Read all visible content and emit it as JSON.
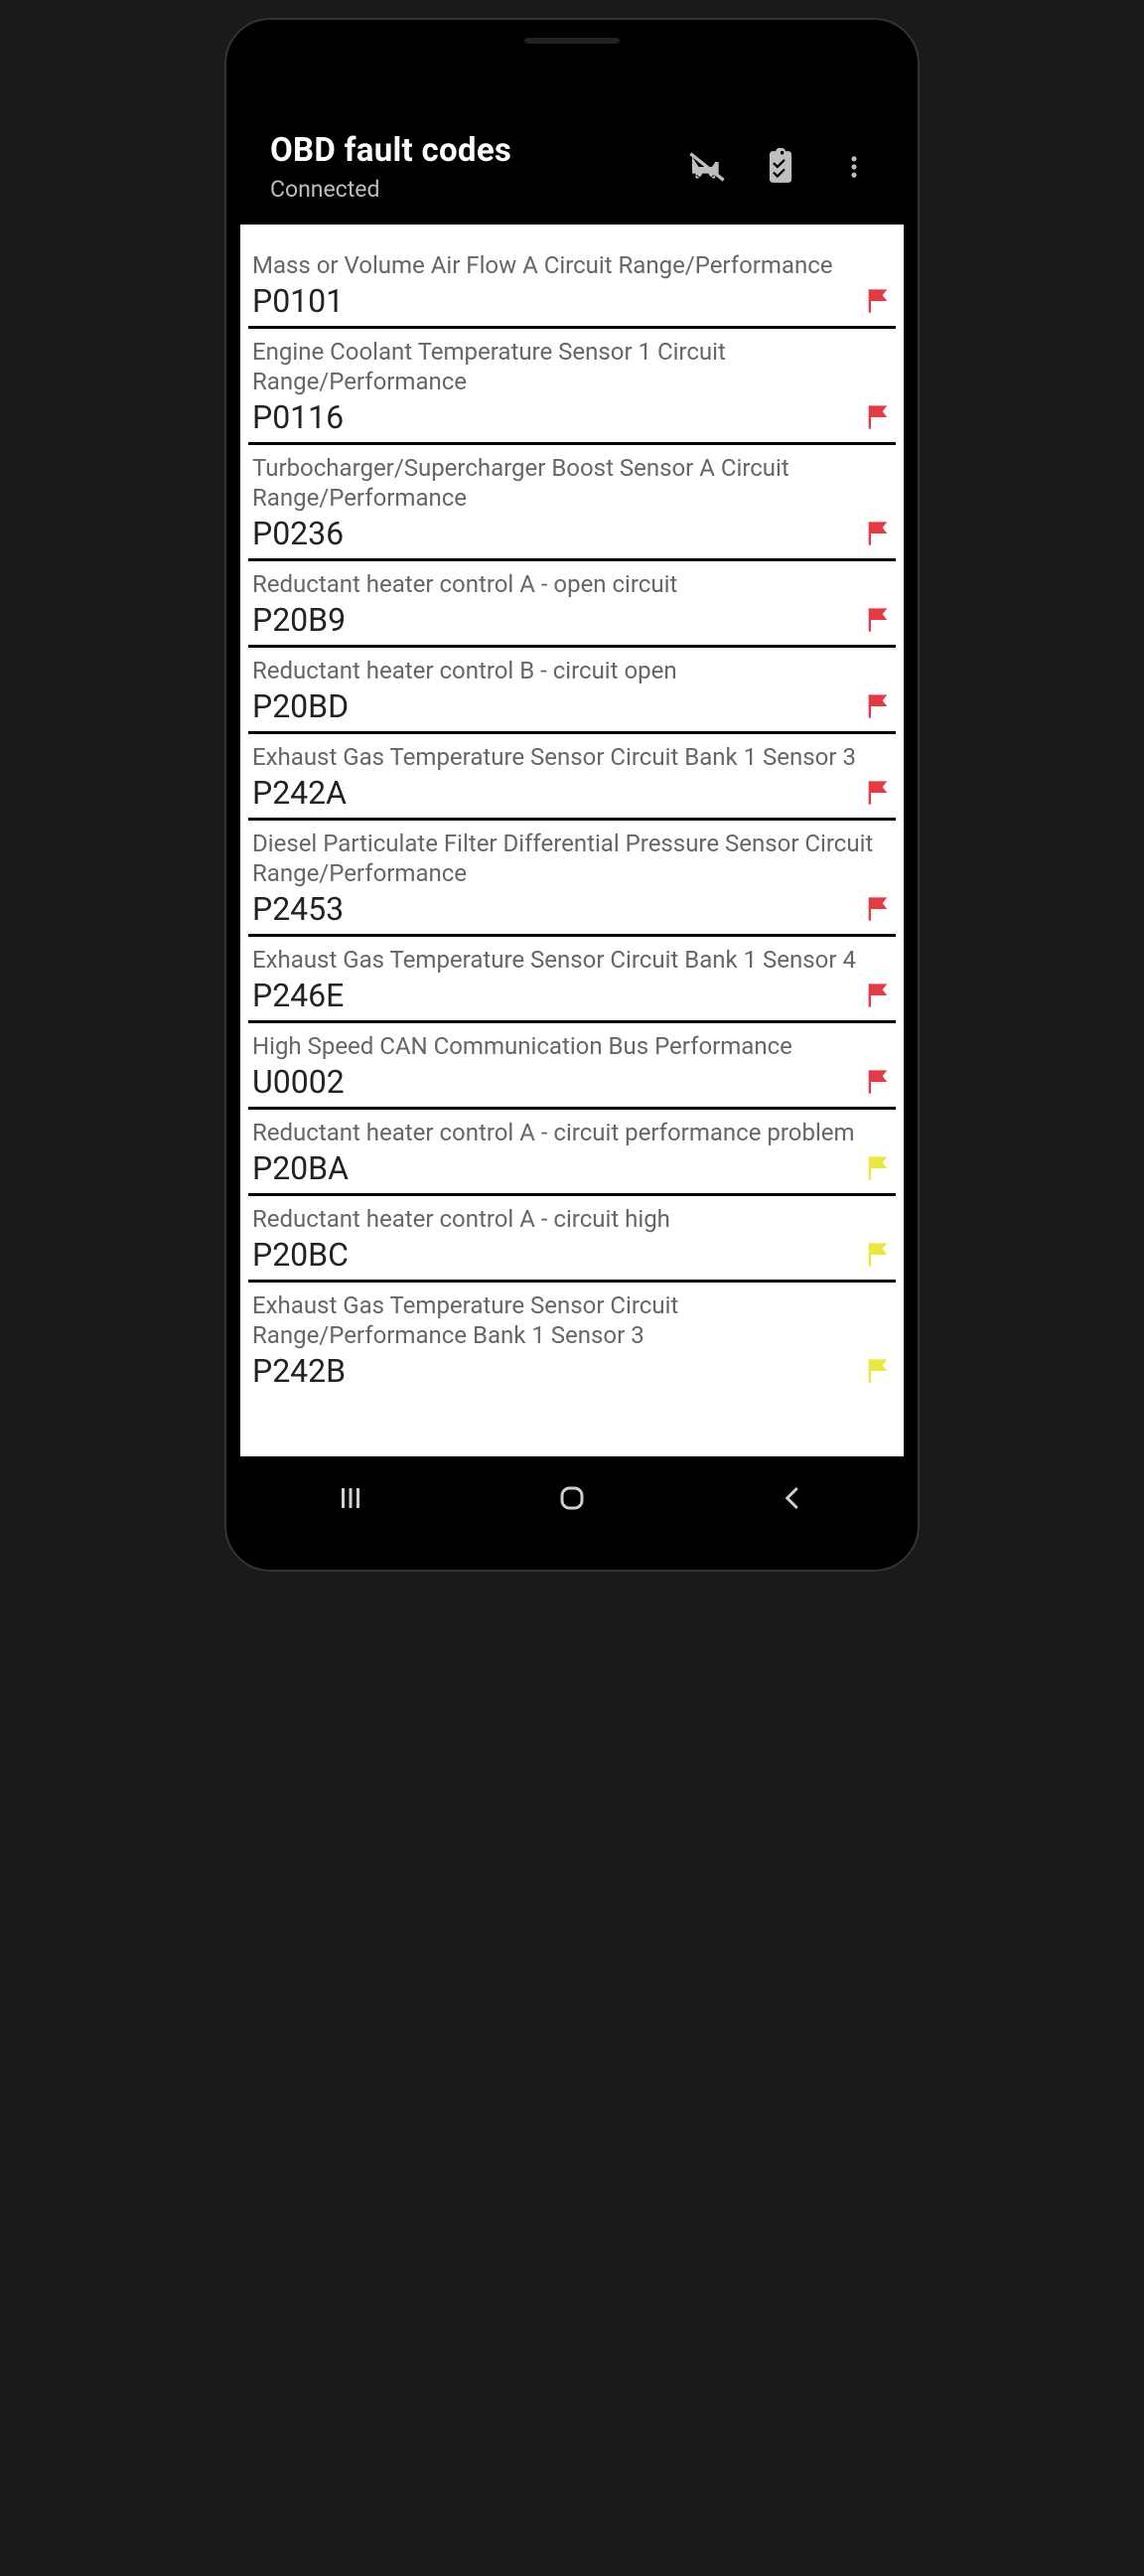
{
  "header": {
    "title": "OBD fault codes",
    "subtitle": "Connected"
  },
  "colors": {
    "flag_red": "#e53946",
    "flag_yellow": "#e8e83e",
    "header_bg": "#000000",
    "content_bg": "#ffffff",
    "desc_text": "#666666",
    "code_text": "#222222",
    "icon_gray": "#bfbfbf",
    "divider": "#000000"
  },
  "faults": [
    {
      "desc": "Mass or Volume Air Flow A Circuit Range/Performance",
      "code": "P0101",
      "flag": "red"
    },
    {
      "desc": "Engine Coolant Temperature Sensor 1 Circuit Range/Performance",
      "code": "P0116",
      "flag": "red"
    },
    {
      "desc": "Turbocharger/Supercharger Boost Sensor A Circuit Range/Performance",
      "code": "P0236",
      "flag": "red"
    },
    {
      "desc": "Reductant heater control A - open circuit",
      "code": "P20B9",
      "flag": "red"
    },
    {
      "desc": "Reductant heater control B - circuit open",
      "code": "P20BD",
      "flag": "red"
    },
    {
      "desc": "Exhaust Gas Temperature Sensor Circuit Bank 1 Sensor 3",
      "code": "P242A",
      "flag": "red"
    },
    {
      "desc": "Diesel Particulate Filter Differential Pressure Sensor Circuit Range/Performance",
      "code": "P2453",
      "flag": "red"
    },
    {
      "desc": "Exhaust Gas Temperature Sensor Circuit Bank 1 Sensor 4",
      "code": "P246E",
      "flag": "red"
    },
    {
      "desc": "High Speed CAN Communication Bus Performance",
      "code": "U0002",
      "flag": "red"
    },
    {
      "desc": "Reductant heater control A - circuit performance problem",
      "code": "P20BA",
      "flag": "yellow"
    },
    {
      "desc": "Reductant heater control A - circuit high",
      "code": "P20BC",
      "flag": "yellow"
    },
    {
      "desc": "Exhaust Gas Temperature Sensor Circuit Range/Performance Bank 1 Sensor 3",
      "code": "P242B",
      "flag": "yellow"
    }
  ]
}
